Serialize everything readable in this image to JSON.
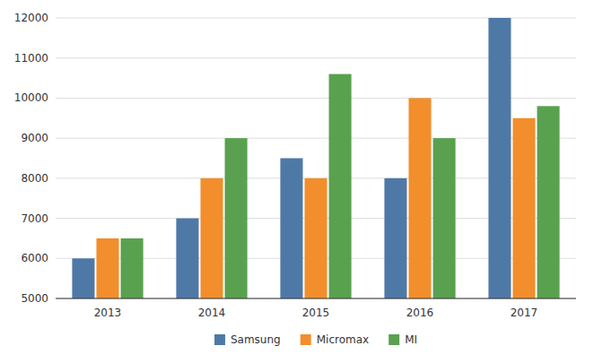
{
  "chart_data": {
    "type": "bar",
    "categories": [
      "2013",
      "2014",
      "2015",
      "2016",
      "2017"
    ],
    "series": [
      {
        "name": "Samsung",
        "values": [
          6000,
          7000,
          8500,
          8000,
          12000
        ]
      },
      {
        "name": "Micromax",
        "values": [
          6500,
          8000,
          8000,
          10000,
          9500
        ]
      },
      {
        "name": "MI",
        "values": [
          6500,
          9000,
          10600,
          9000,
          9800
        ]
      }
    ],
    "ylim": [
      5000,
      12000
    ],
    "yticks": [
      5000,
      6000,
      7000,
      8000,
      9000,
      10000,
      11000,
      12000
    ],
    "grid": true,
    "legend": "bottom"
  }
}
